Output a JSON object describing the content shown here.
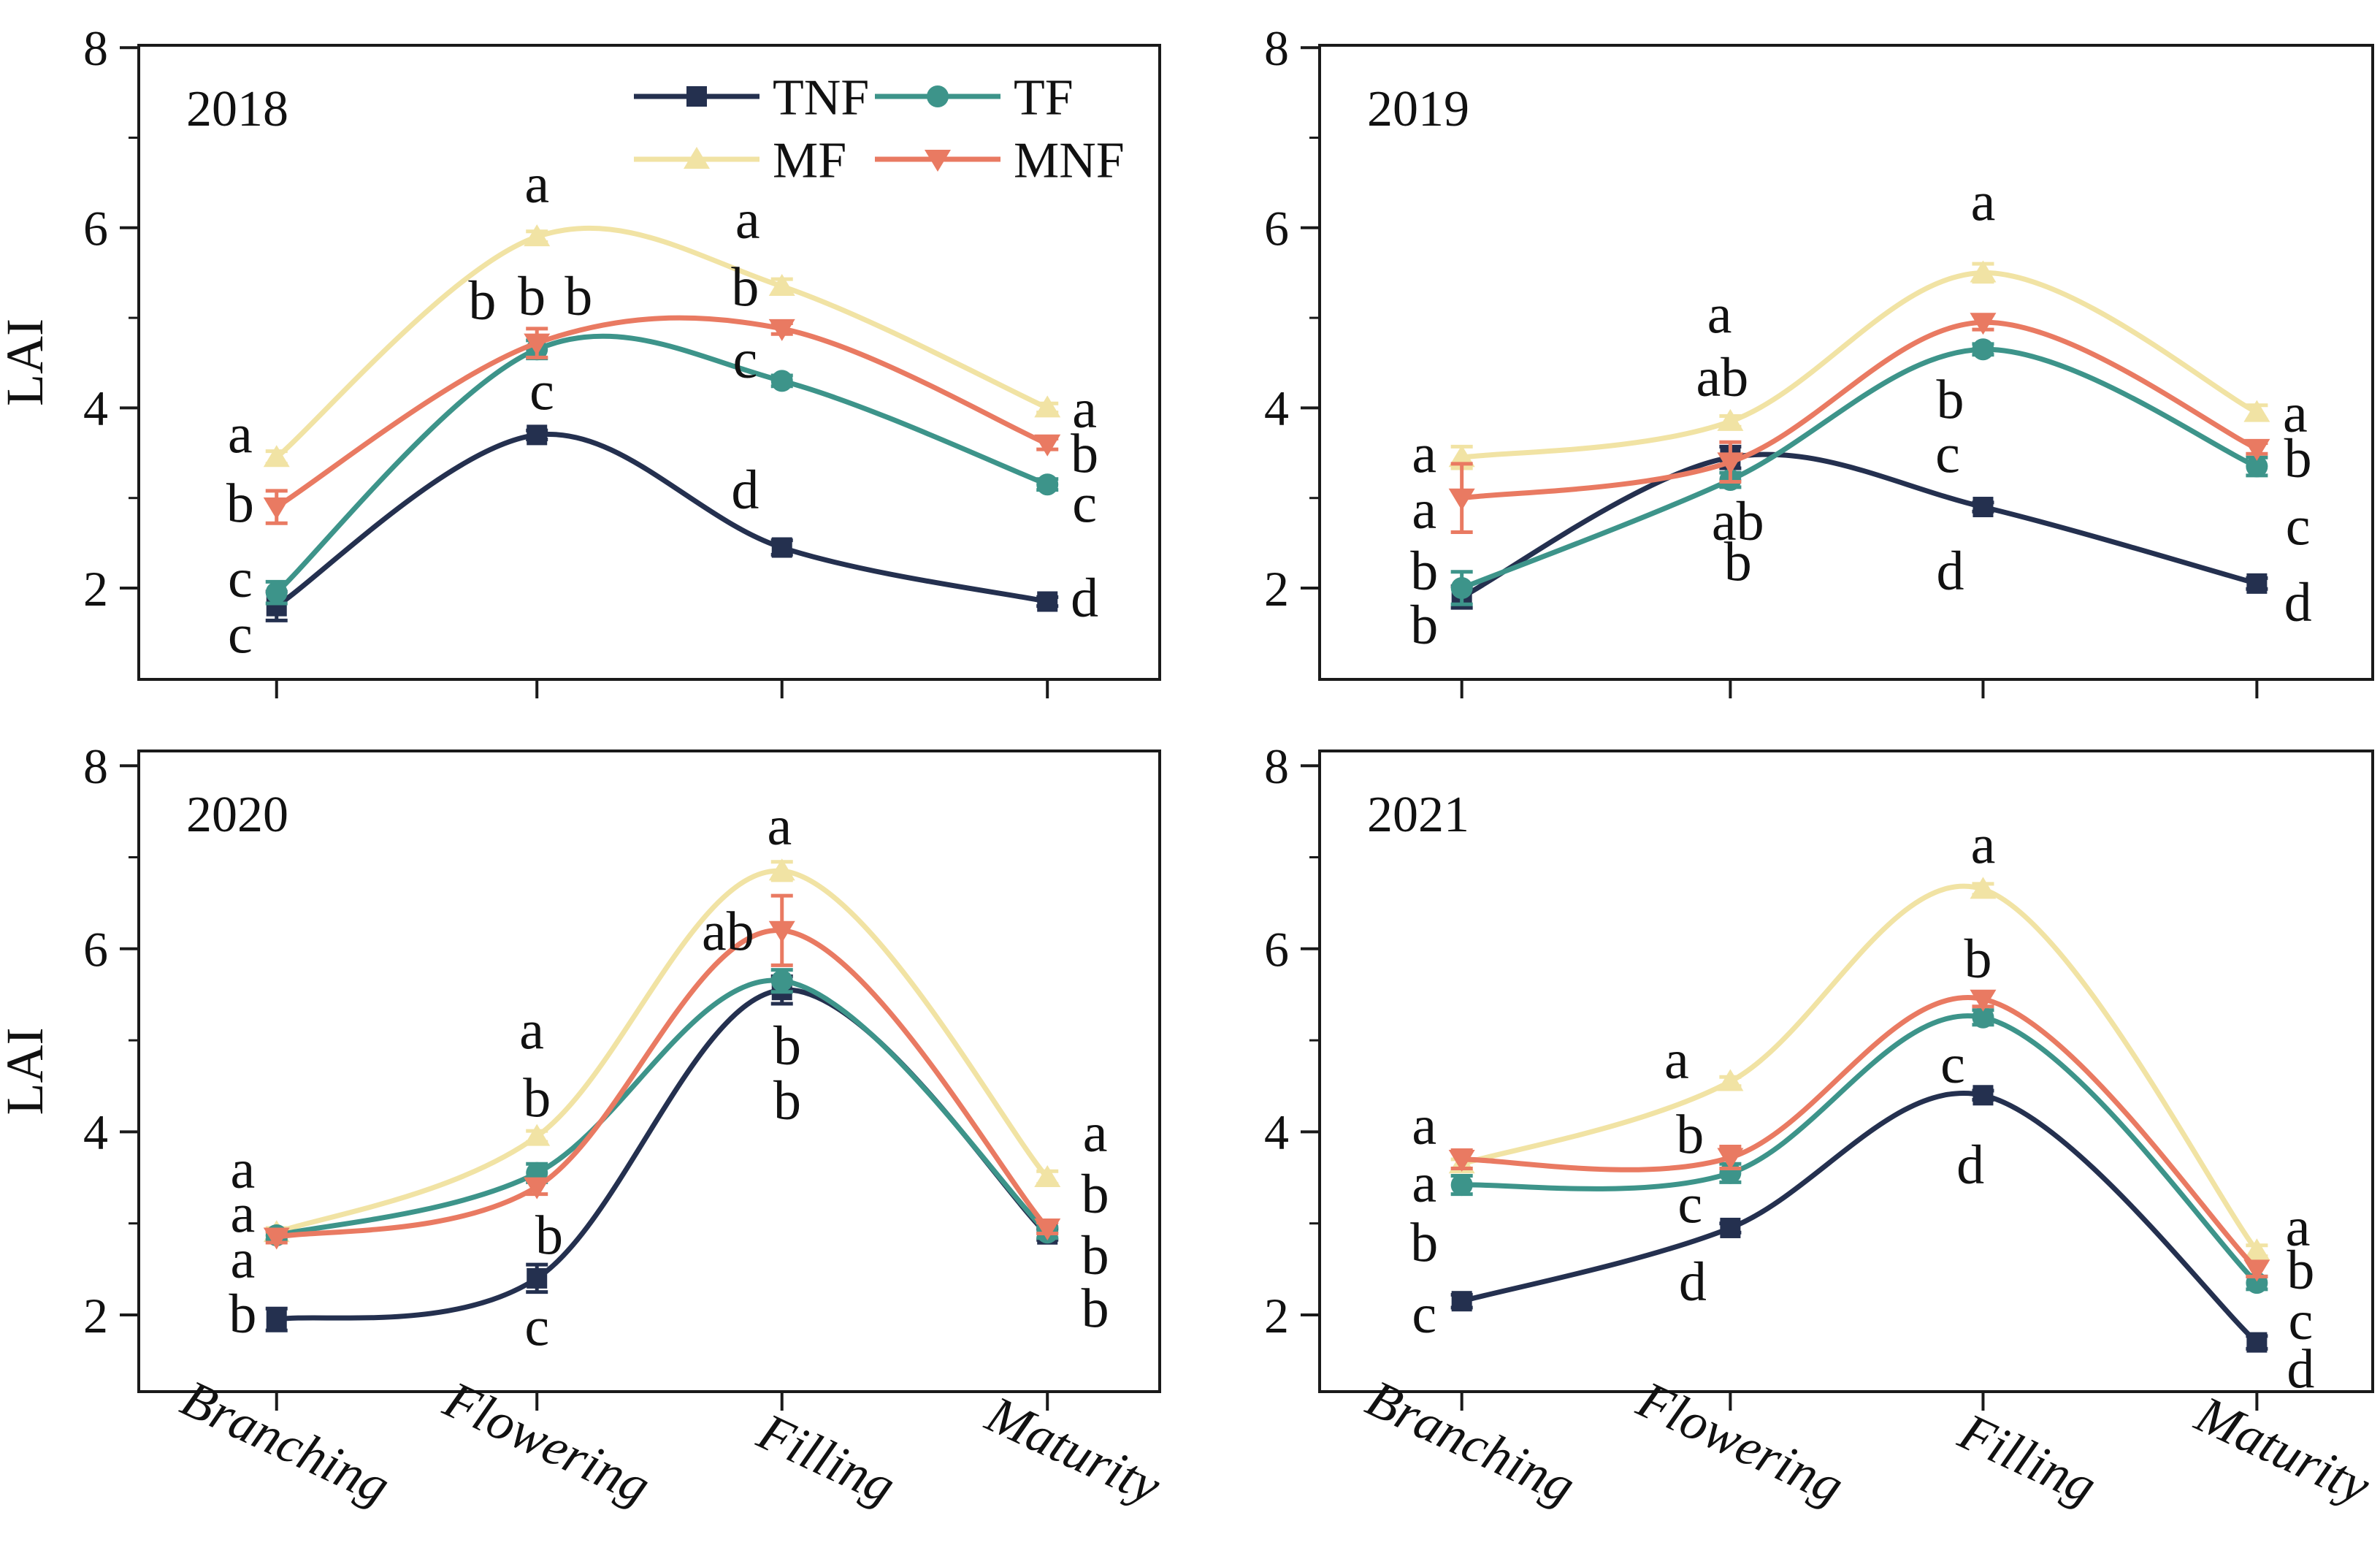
{
  "figure": {
    "y_axis_label": "LAI",
    "x_category_labels": [
      "Branching",
      "Flowering",
      "Filling",
      "Maturity"
    ],
    "y_tick_labels": [
      "8",
      "6",
      "4",
      "2"
    ]
  },
  "legend": {
    "entries": [
      {
        "label": "TNF",
        "marker": "square",
        "color": "#24304f"
      },
      {
        "label": "TF",
        "marker": "circle",
        "color": "#3d948a"
      },
      {
        "label": "MF",
        "marker": "triangle-up",
        "color": "#f1e3a4"
      },
      {
        "label": "MNF",
        "marker": "triangle-down",
        "color": "#e97a62"
      }
    ]
  },
  "colors": {
    "TNF": "#24304f",
    "TF": "#3d948a",
    "MF": "#f1e3a4",
    "MNF": "#e97a62",
    "axis": "#1a1a1a",
    "letter": "#111111"
  },
  "chart_data": [
    {
      "type": "line",
      "title": "2018",
      "ylabel": "LAI",
      "xlabel": "",
      "ylim": [
        1,
        8.1
      ],
      "y_ticks": [
        8,
        6,
        4,
        2
      ],
      "y_minor_ticks": [
        7,
        5,
        3
      ],
      "categories": [
        "Branching",
        "Flowering",
        "Filling",
        "Maturity"
      ],
      "legend_visible": true,
      "show_x_tick_labels": false,
      "show_y_axis_label": true,
      "series": [
        {
          "name": "MF",
          "marker": "triangle-up",
          "color": "#f1e3a4",
          "values": [
            3.45,
            5.9,
            5.35,
            4.0
          ],
          "errors": [
            0.07,
            0.06,
            0.08,
            0.05
          ]
        },
        {
          "name": "TNF",
          "marker": "square",
          "color": "#24304f",
          "values": [
            1.8,
            3.7,
            2.45,
            1.85
          ],
          "errors": [
            0.16,
            0.05,
            0.08,
            0.05
          ]
        },
        {
          "name": "TF",
          "marker": "circle",
          "color": "#3d948a",
          "values": [
            1.95,
            4.65,
            4.3,
            3.15
          ],
          "errors": [
            0.12,
            0.1,
            0.06,
            0.06
          ]
        },
        {
          "name": "MNF",
          "marker": "triangle-down",
          "color": "#e97a62",
          "values": [
            2.9,
            4.72,
            4.88,
            3.6
          ],
          "errors": [
            0.18,
            0.16,
            0.06,
            0.06
          ]
        }
      ],
      "annotations": [
        {
          "t": "a",
          "x": -0.14,
          "y": 3.72
        },
        {
          "t": "b",
          "x": -0.14,
          "y": 2.95
        },
        {
          "t": "c",
          "x": -0.14,
          "y": 2.12
        },
        {
          "t": "c",
          "x": -0.14,
          "y": 1.5
        },
        {
          "t": "a",
          "x": 1.0,
          "y": 6.5
        },
        {
          "t": "b",
          "x": 0.79,
          "y": 5.2
        },
        {
          "t": "b",
          "x": 0.98,
          "y": 5.25
        },
        {
          "t": "b",
          "x": 1.17,
          "y": 5.25
        },
        {
          "t": "c",
          "x": 1.02,
          "y": 4.2
        },
        {
          "t": "a",
          "x": 1.86,
          "y": 6.1
        },
        {
          "t": "b",
          "x": 1.85,
          "y": 5.35
        },
        {
          "t": "c",
          "x": 1.85,
          "y": 4.55
        },
        {
          "t": "d",
          "x": 1.85,
          "y": 3.1
        },
        {
          "t": "a",
          "x": 3.14,
          "y": 4.0
        },
        {
          "t": "b",
          "x": 3.14,
          "y": 3.5
        },
        {
          "t": "c",
          "x": 3.14,
          "y": 2.95
        },
        {
          "t": "d",
          "x": 3.14,
          "y": 1.9
        }
      ]
    },
    {
      "type": "line",
      "title": "2019",
      "ylabel": "",
      "xlabel": "",
      "ylim": [
        1,
        8.1
      ],
      "y_ticks": [
        8,
        6,
        4,
        2
      ],
      "y_minor_ticks": [
        7,
        5,
        3
      ],
      "categories": [
        "Branching",
        "Flowering",
        "Filling",
        "Maturity"
      ],
      "legend_visible": false,
      "show_x_tick_labels": false,
      "show_y_axis_label": false,
      "series": [
        {
          "name": "MF",
          "marker": "triangle-up",
          "color": "#f1e3a4",
          "values": [
            3.45,
            3.85,
            5.5,
            3.95
          ],
          "errors": [
            0.12,
            0.06,
            0.1,
            0.08
          ]
        },
        {
          "name": "TNF",
          "marker": "square",
          "color": "#24304f",
          "values": [
            1.9,
            3.45,
            2.9,
            2.05
          ],
          "errors": [
            0.12,
            0.12,
            0.05,
            0.06
          ]
        },
        {
          "name": "TF",
          "marker": "circle",
          "color": "#3d948a",
          "values": [
            2.0,
            3.2,
            4.65,
            3.35
          ],
          "errors": [
            0.18,
            0.08,
            0.06,
            0.1
          ]
        },
        {
          "name": "MNF",
          "marker": "triangle-down",
          "color": "#e97a62",
          "values": [
            3.0,
            3.4,
            4.95,
            3.55
          ],
          "errors": [
            0.38,
            0.22,
            0.08,
            0.06
          ]
        }
      ],
      "annotations": [
        {
          "t": "a",
          "x": -0.14,
          "y": 3.5
        },
        {
          "t": "a",
          "x": -0.14,
          "y": 2.88
        },
        {
          "t": "b",
          "x": -0.14,
          "y": 2.2
        },
        {
          "t": "b",
          "x": -0.14,
          "y": 1.6
        },
        {
          "t": "a",
          "x": 0.96,
          "y": 5.05
        },
        {
          "t": "ab",
          "x": 0.97,
          "y": 4.35
        },
        {
          "t": "ab",
          "x": 1.03,
          "y": 2.75
        },
        {
          "t": "b",
          "x": 1.03,
          "y": 2.3
        },
        {
          "t": "a",
          "x": 2.0,
          "y": 6.3
        },
        {
          "t": "b",
          "x": 1.87,
          "y": 4.1
        },
        {
          "t": "c",
          "x": 1.86,
          "y": 3.5
        },
        {
          "t": "d",
          "x": 1.87,
          "y": 2.2
        },
        {
          "t": "a",
          "x": 3.14,
          "y": 3.95
        },
        {
          "t": "b",
          "x": 3.15,
          "y": 3.45
        },
        {
          "t": "c",
          "x": 3.15,
          "y": 2.7
        },
        {
          "t": "d",
          "x": 3.15,
          "y": 1.85
        }
      ]
    },
    {
      "type": "line",
      "title": "2020",
      "ylabel": "LAI",
      "xlabel": "",
      "ylim": [
        1,
        8.1
      ],
      "y_ticks": [
        8,
        6,
        4,
        2
      ],
      "y_minor_ticks": [
        7,
        5,
        3
      ],
      "categories": [
        "Branching",
        "Flowering",
        "Filling",
        "Maturity"
      ],
      "legend_visible": false,
      "show_x_tick_labels": true,
      "show_y_axis_label": true,
      "series": [
        {
          "name": "MF",
          "marker": "triangle-up",
          "color": "#f1e3a4",
          "values": [
            2.9,
            3.95,
            6.85,
            3.5
          ],
          "errors": [
            0.05,
            0.06,
            0.1,
            0.07
          ]
        },
        {
          "name": "TNF",
          "marker": "square",
          "color": "#24304f",
          "values": [
            1.95,
            2.4,
            5.55,
            2.88
          ],
          "errors": [
            0.12,
            0.15,
            0.15,
            0.06
          ]
        },
        {
          "name": "TF",
          "marker": "circle",
          "color": "#3d948a",
          "values": [
            2.87,
            3.55,
            5.65,
            2.9
          ],
          "errors": [
            0.05,
            0.1,
            0.12,
            0.06
          ]
        },
        {
          "name": "MNF",
          "marker": "triangle-down",
          "color": "#e97a62",
          "values": [
            2.85,
            3.4,
            6.2,
            2.95
          ],
          "errors": [
            0.06,
            0.08,
            0.38,
            0.06
          ]
        }
      ],
      "annotations": [
        {
          "t": "a",
          "x": -0.13,
          "y": 3.6
        },
        {
          "t": "a",
          "x": -0.13,
          "y": 3.12
        },
        {
          "t": "a",
          "x": -0.13,
          "y": 2.62
        },
        {
          "t": "b",
          "x": -0.13,
          "y": 2.02
        },
        {
          "t": "a",
          "x": 0.98,
          "y": 5.12
        },
        {
          "t": "b",
          "x": 1.0,
          "y": 4.38
        },
        {
          "t": "b",
          "x": 1.05,
          "y": 2.88
        },
        {
          "t": "c",
          "x": 1.0,
          "y": 1.88
        },
        {
          "t": "a",
          "x": 1.99,
          "y": 7.35
        },
        {
          "t": "ab",
          "x": 1.78,
          "y": 6.2
        },
        {
          "t": "b",
          "x": 2.02,
          "y": 4.95
        },
        {
          "t": "b",
          "x": 2.02,
          "y": 4.35
        },
        {
          "t": "a",
          "x": 3.18,
          "y": 4.0
        },
        {
          "t": "b",
          "x": 3.18,
          "y": 3.33
        },
        {
          "t": "b",
          "x": 3.18,
          "y": 2.66
        },
        {
          "t": "b",
          "x": 3.18,
          "y": 2.08
        }
      ]
    },
    {
      "type": "line",
      "title": "2021",
      "ylabel": "",
      "xlabel": "",
      "ylim": [
        1,
        8.1
      ],
      "y_ticks": [
        8,
        6,
        4,
        2
      ],
      "y_minor_ticks": [
        7,
        5,
        3
      ],
      "categories": [
        "Branching",
        "Flowering",
        "Filling",
        "Maturity"
      ],
      "legend_visible": false,
      "show_x_tick_labels": true,
      "show_y_axis_label": false,
      "series": [
        {
          "name": "MF",
          "marker": "triangle-up",
          "color": "#f1e3a4",
          "values": [
            3.65,
            4.55,
            6.65,
            2.7
          ],
          "errors": [
            0.05,
            0.05,
            0.06,
            0.06
          ]
        },
        {
          "name": "TNF",
          "marker": "square",
          "color": "#24304f",
          "values": [
            2.15,
            2.95,
            4.4,
            1.7
          ],
          "errors": [
            0.07,
            0.05,
            0.05,
            0.07
          ]
        },
        {
          "name": "TF",
          "marker": "circle",
          "color": "#3d948a",
          "values": [
            3.42,
            3.55,
            5.25,
            2.35
          ],
          "errors": [
            0.1,
            0.1,
            0.08,
            0.07
          ]
        },
        {
          "name": "MNF",
          "marker": "triangle-down",
          "color": "#e97a62",
          "values": [
            3.7,
            3.72,
            5.45,
            2.5
          ],
          "errors": [
            0.1,
            0.12,
            0.08,
            0.08
          ]
        }
      ],
      "annotations": [
        {
          "t": "a",
          "x": -0.14,
          "y": 4.08
        },
        {
          "t": "a",
          "x": -0.14,
          "y": 3.45
        },
        {
          "t": "b",
          "x": -0.14,
          "y": 2.8
        },
        {
          "t": "c",
          "x": -0.14,
          "y": 2.02
        },
        {
          "t": "a",
          "x": 0.8,
          "y": 4.8
        },
        {
          "t": "b",
          "x": 0.85,
          "y": 3.98
        },
        {
          "t": "c",
          "x": 0.85,
          "y": 3.22
        },
        {
          "t": "d",
          "x": 0.86,
          "y": 2.37
        },
        {
          "t": "a",
          "x": 2.0,
          "y": 7.15
        },
        {
          "t": "b",
          "x": 1.98,
          "y": 5.9
        },
        {
          "t": "c",
          "x": 1.88,
          "y": 4.75
        },
        {
          "t": "d",
          "x": 1.95,
          "y": 3.65
        },
        {
          "t": "a",
          "x": 3.15,
          "y": 2.97
        },
        {
          "t": "b",
          "x": 3.16,
          "y": 2.5
        },
        {
          "t": "c",
          "x": 3.16,
          "y": 1.95
        },
        {
          "t": "d",
          "x": 3.16,
          "y": 1.42
        }
      ]
    }
  ]
}
